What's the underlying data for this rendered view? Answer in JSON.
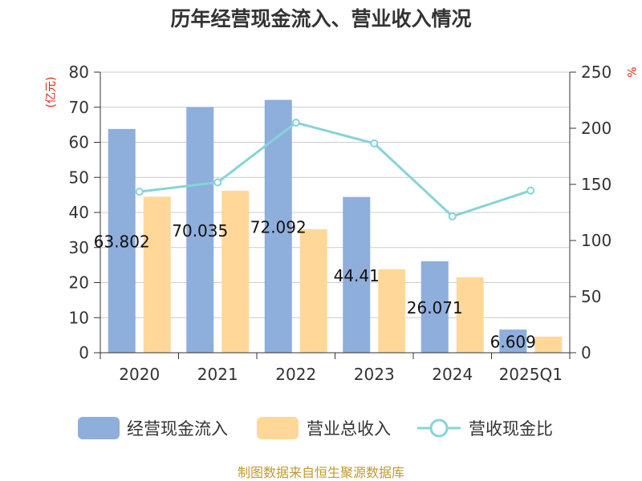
{
  "chart_data": {
    "type": "bar",
    "title": "历年经营现金流入、营业收入情况",
    "categories": [
      "2020",
      "2021",
      "2022",
      "2023",
      "2024",
      "2025Q1"
    ],
    "series": [
      {
        "name": "经营现金流入",
        "type": "bar",
        "axis": "left",
        "color": "#8eaedc",
        "values": [
          63.802,
          70.035,
          72.092,
          44.41,
          26.071,
          6.609
        ],
        "labels": [
          "63.802",
          "70.035",
          "72.092",
          "44.41",
          "26.071",
          "6.609"
        ]
      },
      {
        "name": "营业总收入",
        "type": "bar",
        "axis": "left",
        "color": "#ffd899",
        "values": [
          44.5,
          46.2,
          35.2,
          23.8,
          21.5,
          4.6
        ]
      },
      {
        "name": "营收现金比",
        "type": "line",
        "axis": "right",
        "color": "#86d3d8",
        "values": [
          143.5,
          151.8,
          205.0,
          186.5,
          121.5,
          144.5
        ]
      }
    ],
    "y_left": {
      "label": "(亿元)",
      "min": 0,
      "max": 80,
      "ticks": [
        0,
        10,
        20,
        30,
        40,
        50,
        60,
        70,
        80
      ]
    },
    "y_right": {
      "label": "%",
      "min": 0,
      "max": 250,
      "ticks": [
        0,
        50,
        100,
        150,
        200,
        250
      ]
    },
    "grid": true,
    "legend": "bottom",
    "source": "制图数据来自恒生聚源数据库"
  }
}
